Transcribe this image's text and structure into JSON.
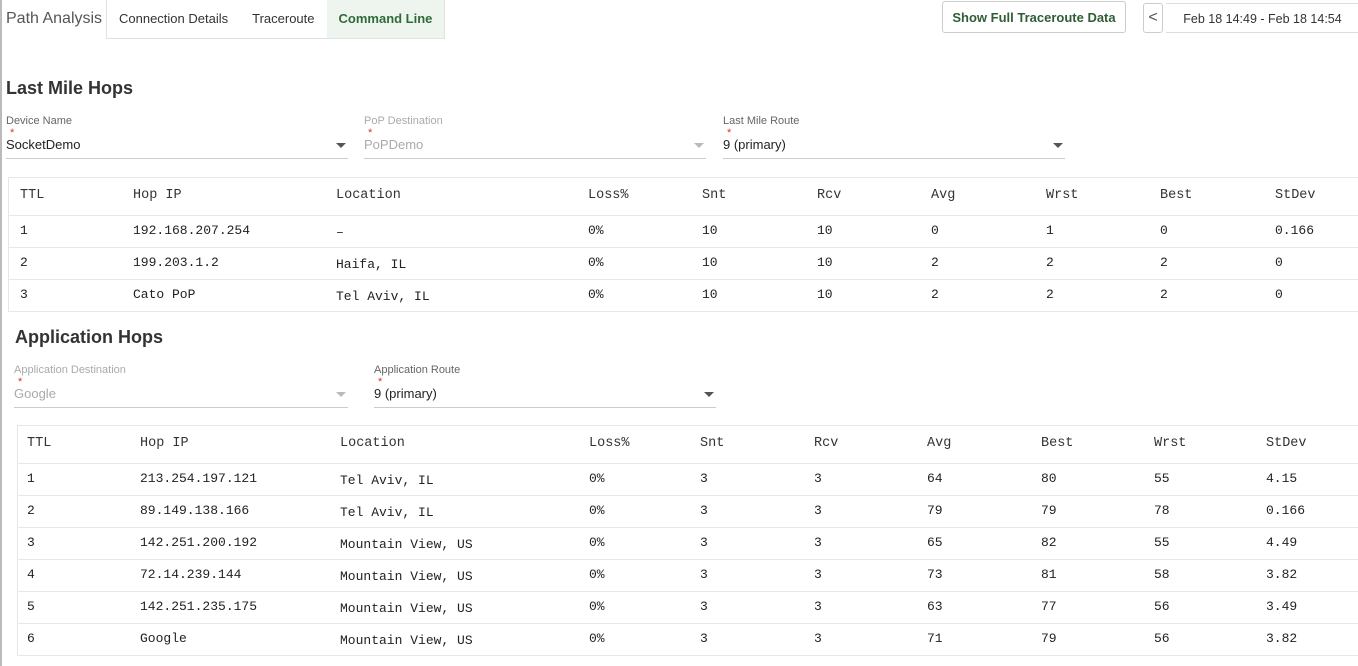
{
  "header": {
    "title": "Path Analysis",
    "tabs": [
      "Connection Details",
      "Traceroute",
      "Command Line"
    ],
    "button": "Show Full Traceroute Data",
    "nav": "<",
    "date_range": "Feb 18 14:49 - Feb 18 14:54"
  },
  "required_mark": "*",
  "last_mile": {
    "title": "Last Mile Hops",
    "fields": [
      {
        "label": "Device Name",
        "value": "SocketDemo"
      },
      {
        "label": "PoP Destination",
        "value": "PoPDemo"
      },
      {
        "label": "Last Mile Route",
        "value": "9 (primary)"
      }
    ],
    "table": {
      "columns": [
        "TTL",
        "Hop IP",
        "Location",
        "Loss%",
        "Snt",
        "Rcv",
        "Avg",
        "Wrst",
        "Best",
        "StDev"
      ],
      "rows": [
        [
          "1",
          "192.168.207.254",
          "–",
          "0%",
          "10",
          "10",
          "0",
          "1",
          "0",
          "0.166"
        ],
        [
          "2",
          "199.203.1.2",
          "Haifa, IL",
          "0%",
          "10",
          "10",
          "2",
          "2",
          "2",
          "0"
        ],
        [
          "3",
          "Cato PoP",
          "Tel Aviv, IL",
          "0%",
          "10",
          "10",
          "2",
          "2",
          "2",
          "0"
        ]
      ]
    }
  },
  "application": {
    "title": "Application Hops",
    "fields": [
      {
        "label": "Application Destination",
        "value": "Google"
      },
      {
        "label": "Application Route",
        "value": "9 (primary)"
      }
    ],
    "table": {
      "columns": [
        "TTL",
        "Hop IP",
        "Location",
        "Loss%",
        "Snt",
        "Rcv",
        "Avg",
        "Best",
        "Wrst",
        "StDev"
      ],
      "rows": [
        [
          "1",
          "213.254.197.121",
          "Tel Aviv, IL",
          "0%",
          "3",
          "3",
          "64",
          "80",
          "55",
          "4.15"
        ],
        [
          "2",
          "89.149.138.166",
          "Tel Aviv, IL",
          "0%",
          "3",
          "3",
          "79",
          "79",
          "78",
          "0.166"
        ],
        [
          "3",
          "142.251.200.192",
          "Mountain View, US",
          "0%",
          "3",
          "3",
          "65",
          "82",
          "55",
          "4.49"
        ],
        [
          "4",
          "72.14.239.144",
          "Mountain View, US",
          "0%",
          "3",
          "3",
          "73",
          "81",
          "58",
          "3.82"
        ],
        [
          "5",
          "142.251.235.175",
          "Mountain View, US",
          "0%",
          "3",
          "3",
          "63",
          "77",
          "56",
          "3.49"
        ],
        [
          "6",
          "Google",
          "Mountain View, US",
          "0%",
          "3",
          "3",
          "71",
          "79",
          "56",
          "3.82"
        ]
      ]
    }
  }
}
